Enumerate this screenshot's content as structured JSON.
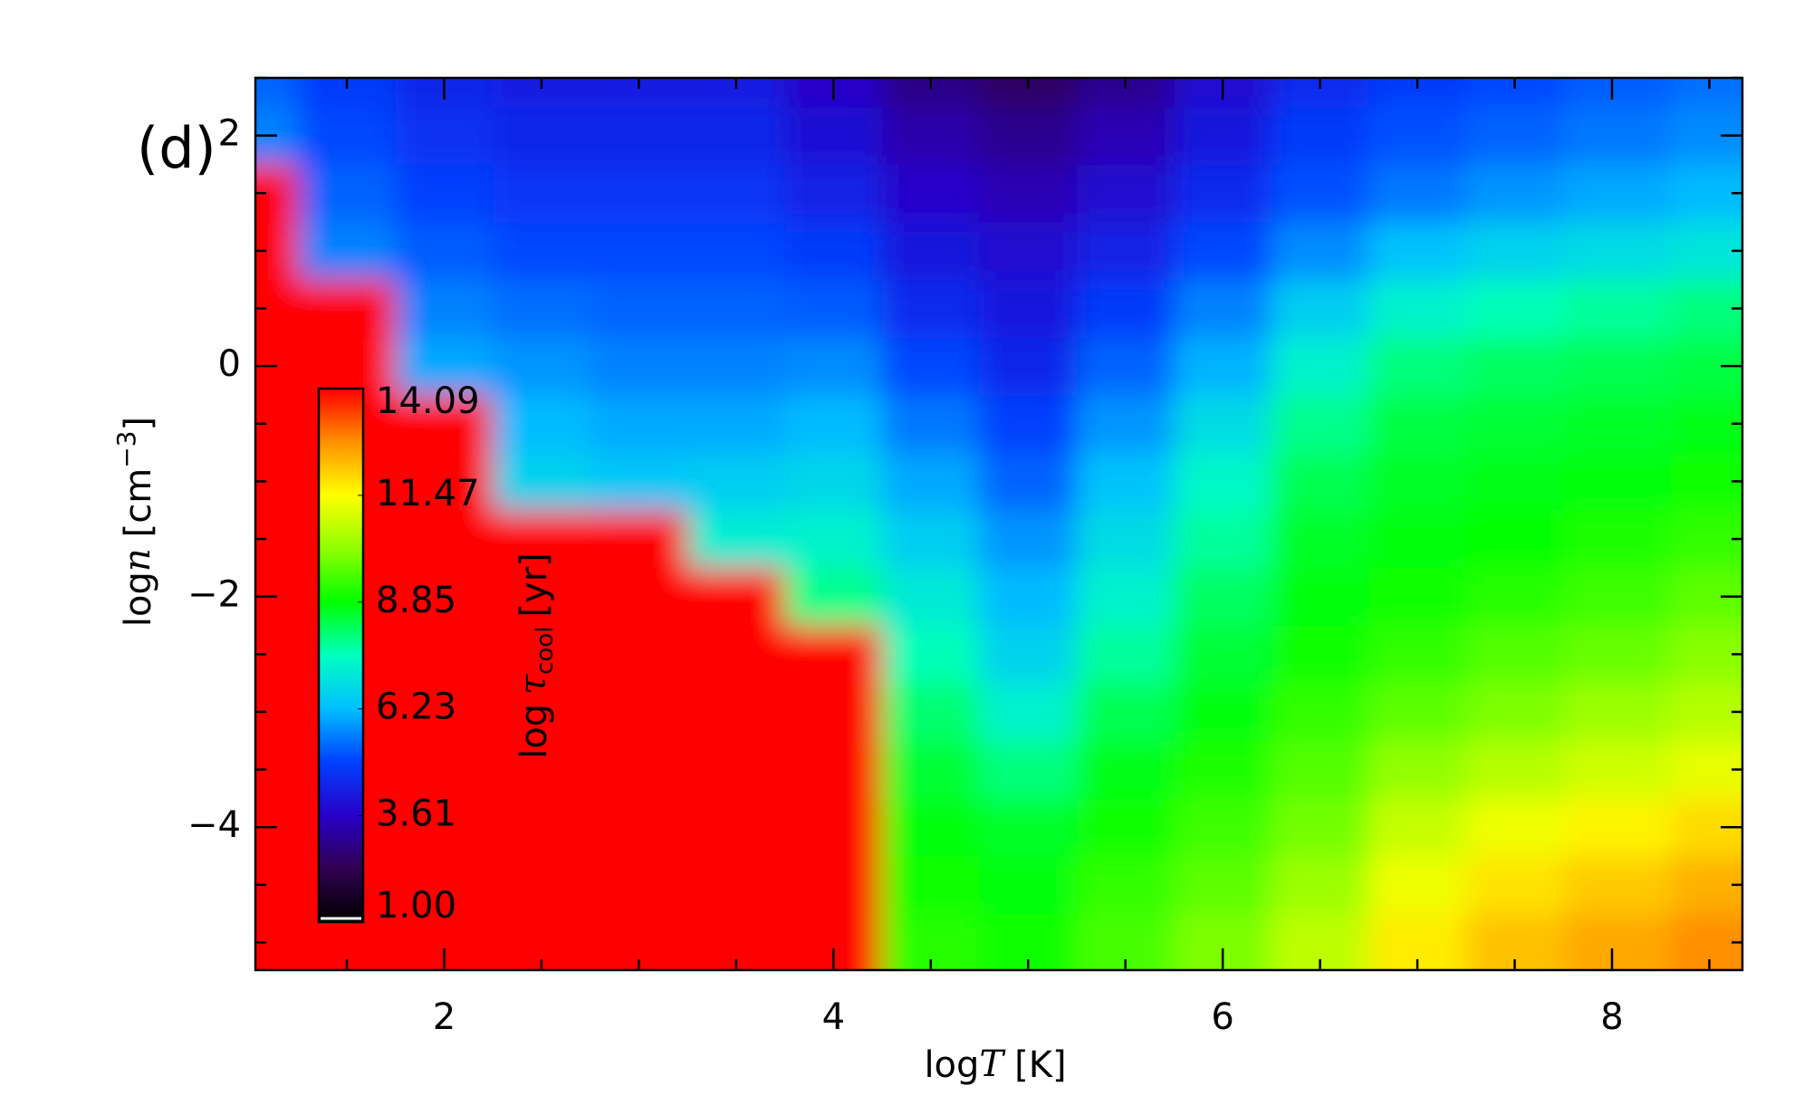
{
  "chart_data": {
    "type": "heatmap",
    "title": "(d)",
    "xlabel": [
      "log",
      "T",
      "[K]"
    ],
    "ylabel": [
      "log",
      "n",
      "[cm",
      "−3",
      "]"
    ],
    "xlim": [
      1.03,
      8.67
    ],
    "ylim": [
      -5.24,
      2.5
    ],
    "xticks": [
      2,
      4,
      6,
      8
    ],
    "xminorticks": [
      1.5,
      2.5,
      3,
      3.5,
      4.5,
      5,
      5.5,
      6.5,
      7,
      7.5,
      8.5
    ],
    "yticks": [
      {
        "value": -4,
        "label": "−4"
      },
      {
        "value": -2,
        "label": "−2"
      },
      0,
      2
    ],
    "yminorticks": [
      -5,
      -4.5,
      -3.5,
      -3,
      -2.5,
      -1.5,
      -1,
      -0.5,
      0.5,
      1,
      1.5,
      2.5
    ],
    "x": [
      1,
      1.5,
      2,
      2.5,
      3,
      3.5,
      4,
      4.5,
      5,
      5.5,
      6,
      6.5,
      7,
      7.5,
      8,
      8.6
    ],
    "y": [
      -5,
      -4.5,
      -4,
      -3.5,
      -3,
      -2.5,
      -2,
      -1.5,
      -1,
      -0.5,
      0,
      0.5,
      1,
      1.5,
      2,
      2.5
    ],
    "values": [
      [
        14.09,
        14.09,
        14.09,
        14.09,
        14.09,
        14.09,
        14.09,
        14.09,
        14.09,
        14.09,
        14.09,
        14.09,
        14.09,
        14.09,
        5.6,
        5.3
      ],
      [
        14.09,
        14.09,
        14.09,
        14.09,
        14.09,
        14.09,
        14.09,
        14.09,
        14.09,
        14.09,
        14.09,
        14.09,
        5.6,
        5.3,
        5.0,
        4.8
      ],
      [
        14.09,
        14.09,
        14.09,
        14.09,
        14.09,
        14.09,
        14.09,
        14.09,
        14.09,
        14.09,
        6.0,
        5.6,
        5.2,
        4.9,
        4.6,
        4.4
      ],
      [
        14.09,
        14.09,
        14.09,
        14.09,
        14.09,
        14.09,
        14.09,
        14.09,
        6.6,
        6.2,
        5.8,
        5.4,
        5.0,
        4.7,
        4.4,
        4.2
      ],
      [
        14.09,
        14.09,
        14.09,
        14.09,
        14.09,
        14.09,
        14.09,
        14.09,
        6.4,
        6.0,
        5.6,
        5.3,
        5.0,
        4.7,
        4.4,
        4.2
      ],
      [
        14.09,
        14.09,
        14.09,
        14.09,
        14.09,
        14.09,
        14.09,
        7.2,
        6.5,
        6.0,
        5.6,
        5.3,
        5.0,
        4.7,
        4.4,
        4.2
      ],
      [
        14.09,
        14.09,
        14.09,
        14.09,
        14.09,
        14.09,
        7.9,
        7.3,
        6.7,
        6.2,
        5.7,
        5.2,
        4.8,
        4.3,
        3.9,
        3.6
      ],
      [
        9.2,
        9.0,
        8.8,
        8.5,
        8.1,
        7.6,
        7.1,
        6.5,
        6.0,
        5.5,
        5.0,
        4.5,
        4.1,
        3.7,
        3.3,
        2.9
      ],
      [
        9.0,
        8.8,
        8.6,
        8.0,
        7.3,
        6.6,
        6.2,
        5.8,
        5.3,
        4.9,
        4.4,
        4.1,
        3.8,
        3.4,
        3.0,
        2.5
      ],
      [
        9.5,
        9.3,
        9.0,
        8.7,
        8.3,
        7.8,
        7.3,
        6.8,
        6.3,
        5.8,
        5.3,
        4.8,
        4.3,
        3.8,
        3.4,
        3.0
      ],
      [
        10.0,
        9.7,
        9.4,
        9.1,
        8.8,
        8.5,
        8.2,
        7.8,
        7.4,
        6.8,
        6.1,
        5.6,
        5.0,
        4.5,
        4.1,
        3.8
      ],
      [
        10.7,
        10.3,
        9.9,
        9.6,
        9.3,
        9.0,
        8.8,
        8.6,
        8.3,
        7.9,
        7.3,
        6.5,
        5.7,
        5.1,
        4.8,
        4.5
      ],
      [
        11.7,
        11.3,
        10.8,
        10.2,
        9.7,
        9.3,
        9.0,
        8.8,
        8.6,
        8.4,
        8.0,
        7.3,
        6.3,
        5.5,
        5.1,
        4.8
      ],
      [
        12.2,
        11.8,
        11.3,
        10.6,
        10.0,
        9.6,
        9.2,
        8.9,
        8.7,
        8.5,
        8.2,
        7.6,
        6.6,
        5.8,
        5.3,
        5.0
      ],
      [
        12.5,
        12.1,
        11.6,
        10.9,
        10.3,
        9.8,
        9.4,
        9.1,
        8.8,
        8.6,
        8.3,
        7.8,
        6.8,
        6.0,
        5.5,
        5.2
      ],
      [
        12.8,
        12.4,
        11.9,
        11.2,
        10.6,
        10.1,
        9.7,
        9.3,
        9.0,
        8.7,
        8.4,
        8.0,
        7.0,
        6.2,
        5.7,
        5.4
      ]
    ],
    "colormap": [
      "#000000",
      "#300050",
      "#2800c8",
      "#0040ff",
      "#00c0ff",
      "#00ffc0",
      "#00ff00",
      "#90ff00",
      "#ffff00",
      "#ff9000",
      "#ff0000"
    ],
    "colorbar": {
      "label": [
        "log",
        "τ",
        "cool",
        "[yr]"
      ],
      "lim": [
        1.0,
        14.09
      ],
      "ticks": [
        {
          "value": 1.0,
          "label": "1.00"
        },
        3.61,
        6.23,
        8.85,
        11.47,
        14.09
      ]
    }
  }
}
